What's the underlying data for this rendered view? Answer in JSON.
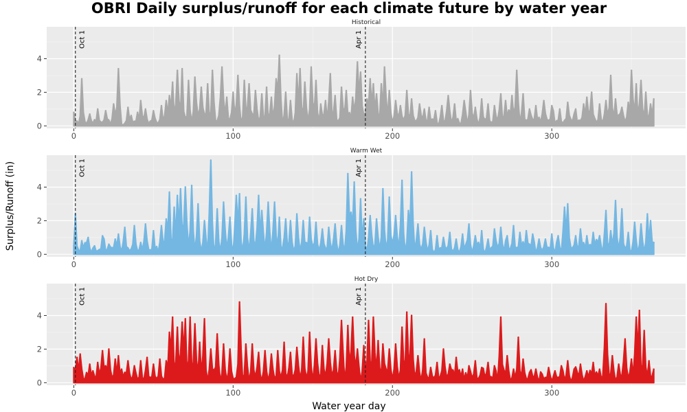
{
  "chart_data": {
    "type": "area",
    "title": "OBRI Daily surplus/runoff for each climate future by water year",
    "xlabel": "Water year day",
    "ylabel": "Surplus/Runoff (in)",
    "xlim": [
      -17,
      384
    ],
    "ylim": [
      -0.15,
      5.9
    ],
    "x_ticks": [
      0,
      100,
      200,
      300
    ],
    "y_ticks": [
      0,
      2,
      4
    ],
    "grid": true,
    "legend": "none",
    "markers": [
      {
        "x": 1,
        "label": "Oct 1"
      },
      {
        "x": 183,
        "label": "Apr 1"
      }
    ],
    "panels": [
      {
        "name": "Historical",
        "color": "#A8A8A8",
        "peaks": [
          [
            0,
            0.8
          ],
          [
            5,
            2.8
          ],
          [
            10,
            0.7
          ],
          [
            15,
            1.0
          ],
          [
            20,
            0.9
          ],
          [
            25,
            1.3
          ],
          [
            28,
            3.4
          ],
          [
            34,
            1.1
          ],
          [
            40,
            0.8
          ],
          [
            42,
            1.5
          ],
          [
            45,
            1.0
          ],
          [
            50,
            0.9
          ],
          [
            55,
            1.2
          ],
          [
            57,
            0.6
          ],
          [
            58,
            1.5
          ],
          [
            60,
            1.8
          ],
          [
            62,
            2.6
          ],
          [
            65,
            3.3
          ],
          [
            68,
            3.4
          ],
          [
            72,
            2.7
          ],
          [
            76,
            2.9
          ],
          [
            80,
            2.3
          ],
          [
            84,
            2.5
          ],
          [
            87,
            3.3
          ],
          [
            93,
            3.5
          ],
          [
            96,
            1.7
          ],
          [
            100,
            2.0
          ],
          [
            103,
            3.0
          ],
          [
            107,
            2.7
          ],
          [
            110,
            2.5
          ],
          [
            114,
            2.1
          ],
          [
            118,
            1.9
          ],
          [
            121,
            2.3
          ],
          [
            124,
            1.7
          ],
          [
            127,
            2.8
          ],
          [
            129,
            4.2
          ],
          [
            133,
            2.0
          ],
          [
            136,
            1.5
          ],
          [
            140,
            3.1
          ],
          [
            142,
            3.4
          ],
          [
            145,
            2.6
          ],
          [
            149,
            3.5
          ],
          [
            152,
            2.7
          ],
          [
            155,
            1.3
          ],
          [
            158,
            1.5
          ],
          [
            161,
            3.1
          ],
          [
            164,
            1.8
          ],
          [
            168,
            2.3
          ],
          [
            171,
            2.1
          ],
          [
            175,
            1.7
          ],
          [
            178,
            3.8
          ],
          [
            180,
            3.2
          ],
          [
            184,
            1.6
          ],
          [
            186,
            2.8
          ],
          [
            188,
            2.5
          ],
          [
            190,
            1.9
          ],
          [
            193,
            2.5
          ],
          [
            195,
            3.5
          ],
          [
            198,
            2.1
          ],
          [
            202,
            1.5
          ],
          [
            205,
            1.2
          ],
          [
            209,
            2.1
          ],
          [
            212,
            1.6
          ],
          [
            217,
            1.3
          ],
          [
            220,
            1.0
          ],
          [
            223,
            1.1
          ],
          [
            227,
            0.9
          ],
          [
            231,
            1.2
          ],
          [
            235,
            1.8
          ],
          [
            239,
            1.3
          ],
          [
            245,
            1.5
          ],
          [
            249,
            2.1
          ],
          [
            252,
            1.1
          ],
          [
            256,
            1.6
          ],
          [
            260,
            1.3
          ],
          [
            264,
            1.2
          ],
          [
            268,
            1.9
          ],
          [
            271,
            1.5
          ],
          [
            275,
            1.8
          ],
          [
            278,
            3.3
          ],
          [
            282,
            1.9
          ],
          [
            286,
            1.0
          ],
          [
            290,
            1.2
          ],
          [
            295,
            1.5
          ],
          [
            300,
            1.2
          ],
          [
            305,
            1.0
          ],
          [
            310,
            1.4
          ],
          [
            315,
            1.0
          ],
          [
            320,
            1.3
          ],
          [
            322,
            1.7
          ],
          [
            325,
            2.0
          ],
          [
            330,
            1.3
          ],
          [
            334,
            1.5
          ],
          [
            337,
            3.0
          ],
          [
            340,
            1.6
          ],
          [
            344,
            1.1
          ],
          [
            348,
            1.4
          ],
          [
            350,
            3.3
          ],
          [
            353,
            2.5
          ],
          [
            356,
            2.7
          ],
          [
            359,
            2.0
          ],
          [
            362,
            1.3
          ],
          [
            364,
            1.6
          ]
        ]
      },
      {
        "name": "Warm Wet",
        "color": "#74B7E2",
        "peaks": [
          [
            0,
            0.5
          ],
          [
            1,
            2.4
          ],
          [
            5,
            0.8
          ],
          [
            9,
            1.0
          ],
          [
            13,
            0.5
          ],
          [
            18,
            1.1
          ],
          [
            22,
            0.6
          ],
          [
            26,
            0.9
          ],
          [
            28,
            1.2
          ],
          [
            32,
            1.6
          ],
          [
            38,
            1.7
          ],
          [
            42,
            0.7
          ],
          [
            45,
            1.8
          ],
          [
            50,
            1.4
          ],
          [
            55,
            1.7
          ],
          [
            58,
            2.1
          ],
          [
            60,
            3.7
          ],
          [
            63,
            2.8
          ],
          [
            65,
            3.5
          ],
          [
            67,
            3.9
          ],
          [
            70,
            4.0
          ],
          [
            74,
            4.1
          ],
          [
            78,
            3.0
          ],
          [
            82,
            2.0
          ],
          [
            86,
            5.6
          ],
          [
            90,
            2.7
          ],
          [
            94,
            3.1
          ],
          [
            98,
            2.2
          ],
          [
            102,
            3.5
          ],
          [
            104,
            3.6
          ],
          [
            108,
            3.4
          ],
          [
            112,
            2.7
          ],
          [
            116,
            3.5
          ],
          [
            118,
            2.6
          ],
          [
            122,
            3.1
          ],
          [
            126,
            3.1
          ],
          [
            129,
            2.2
          ],
          [
            133,
            2.1
          ],
          [
            136,
            2.0
          ],
          [
            140,
            2.4
          ],
          [
            144,
            2.0
          ],
          [
            148,
            2.2
          ],
          [
            152,
            1.9
          ],
          [
            156,
            1.5
          ],
          [
            160,
            1.6
          ],
          [
            164,
            1.8
          ],
          [
            168,
            1.7
          ],
          [
            172,
            4.8
          ],
          [
            174,
            2.5
          ],
          [
            176,
            4.3
          ],
          [
            180,
            3.3
          ],
          [
            182,
            2.1
          ],
          [
            186,
            2.3
          ],
          [
            190,
            2.1
          ],
          [
            194,
            3.9
          ],
          [
            198,
            3.4
          ],
          [
            202,
            2.3
          ],
          [
            206,
            4.4
          ],
          [
            210,
            2.6
          ],
          [
            212,
            4.9
          ],
          [
            216,
            1.8
          ],
          [
            220,
            1.6
          ],
          [
            224,
            1.4
          ],
          [
            228,
            1.1
          ],
          [
            232,
            1.0
          ],
          [
            236,
            1.3
          ],
          [
            240,
            0.9
          ],
          [
            244,
            1.2
          ],
          [
            248,
            1.8
          ],
          [
            252,
            1.1
          ],
          [
            256,
            1.4
          ],
          [
            260,
            0.9
          ],
          [
            264,
            1.5
          ],
          [
            268,
            1.6
          ],
          [
            272,
            1.1
          ],
          [
            276,
            1.7
          ],
          [
            280,
            1.3
          ],
          [
            284,
            1.4
          ],
          [
            288,
            1.2
          ],
          [
            292,
            0.9
          ],
          [
            296,
            0.9
          ],
          [
            300,
            1.2
          ],
          [
            304,
            1.1
          ],
          [
            308,
            2.8
          ],
          [
            310,
            3.0
          ],
          [
            315,
            1.1
          ],
          [
            318,
            1.5
          ],
          [
            322,
            1.1
          ],
          [
            326,
            1.3
          ],
          [
            330,
            1.1
          ],
          [
            334,
            2.6
          ],
          [
            337,
            1.4
          ],
          [
            340,
            3.2
          ],
          [
            344,
            2.7
          ],
          [
            348,
            1.3
          ],
          [
            352,
            1.9
          ],
          [
            356,
            1.8
          ],
          [
            360,
            2.4
          ],
          [
            362,
            2.0
          ],
          [
            364,
            0.7
          ]
        ]
      },
      {
        "name": "Hot Dry",
        "color": "#DC1A1C",
        "peaks": [
          [
            0,
            0.9
          ],
          [
            2,
            1.5
          ],
          [
            4,
            1.7
          ],
          [
            8,
            0.6
          ],
          [
            10,
            1.1
          ],
          [
            12,
            0.7
          ],
          [
            15,
            1.2
          ],
          [
            18,
            1.9
          ],
          [
            20,
            1.0
          ],
          [
            22,
            2.0
          ],
          [
            26,
            1.4
          ],
          [
            28,
            1.6
          ],
          [
            30,
            0.8
          ],
          [
            34,
            1.3
          ],
          [
            38,
            1.0
          ],
          [
            42,
            1.3
          ],
          [
            46,
            1.5
          ],
          [
            50,
            1.1
          ],
          [
            54,
            1.4
          ],
          [
            58,
            1.3
          ],
          [
            60,
            3.0
          ],
          [
            62,
            3.9
          ],
          [
            65,
            3.3
          ],
          [
            68,
            3.6
          ],
          [
            70,
            3.8
          ],
          [
            73,
            3.9
          ],
          [
            76,
            3.5
          ],
          [
            79,
            2.4
          ],
          [
            82,
            3.8
          ],
          [
            86,
            2.0
          ],
          [
            90,
            2.9
          ],
          [
            94,
            2.3
          ],
          [
            98,
            2.0
          ],
          [
            104,
            4.8
          ],
          [
            108,
            2.3
          ],
          [
            112,
            2.3
          ],
          [
            116,
            1.8
          ],
          [
            120,
            1.9
          ],
          [
            124,
            1.7
          ],
          [
            128,
            1.9
          ],
          [
            132,
            2.4
          ],
          [
            136,
            1.8
          ],
          [
            140,
            2.1
          ],
          [
            144,
            2.7
          ],
          [
            148,
            3.0
          ],
          [
            152,
            2.6
          ],
          [
            156,
            2.2
          ],
          [
            160,
            2.6
          ],
          [
            164,
            1.9
          ],
          [
            168,
            3.7
          ],
          [
            172,
            3.4
          ],
          [
            175,
            3.9
          ],
          [
            178,
            2.0
          ],
          [
            182,
            2.2
          ],
          [
            185,
            3.7
          ],
          [
            188,
            3.9
          ],
          [
            191,
            2.5
          ],
          [
            194,
            2.3
          ],
          [
            198,
            2.0
          ],
          [
            202,
            2.3
          ],
          [
            206,
            3.3
          ],
          [
            209,
            4.2
          ],
          [
            212,
            4.0
          ],
          [
            216,
            1.6
          ],
          [
            220,
            2.6
          ],
          [
            224,
            0.9
          ],
          [
            228,
            1.2
          ],
          [
            232,
            2.0
          ],
          [
            236,
            1.1
          ],
          [
            240,
            1.5
          ],
          [
            244,
            0.8
          ],
          [
            248,
            1.0
          ],
          [
            252,
            1.3
          ],
          [
            256,
            0.9
          ],
          [
            260,
            1.2
          ],
          [
            264,
            1.0
          ],
          [
            268,
            3.9
          ],
          [
            272,
            1.6
          ],
          [
            276,
            0.8
          ],
          [
            279,
            2.7
          ],
          [
            282,
            1.4
          ],
          [
            286,
            0.6
          ],
          [
            290,
            0.8
          ],
          [
            294,
            0.5
          ],
          [
            298,
            0.9
          ],
          [
            302,
            0.7
          ],
          [
            306,
            1.0
          ],
          [
            310,
            1.3
          ],
          [
            314,
            0.8
          ],
          [
            318,
            1.1
          ],
          [
            322,
            0.7
          ],
          [
            326,
            1.2
          ],
          [
            330,
            0.8
          ],
          [
            334,
            4.7
          ],
          [
            338,
            1.6
          ],
          [
            342,
            1.1
          ],
          [
            346,
            2.6
          ],
          [
            350,
            1.4
          ],
          [
            353,
            3.9
          ],
          [
            355,
            4.3
          ],
          [
            358,
            3.1
          ],
          [
            361,
            1.3
          ],
          [
            364,
            0.8
          ]
        ]
      }
    ]
  }
}
